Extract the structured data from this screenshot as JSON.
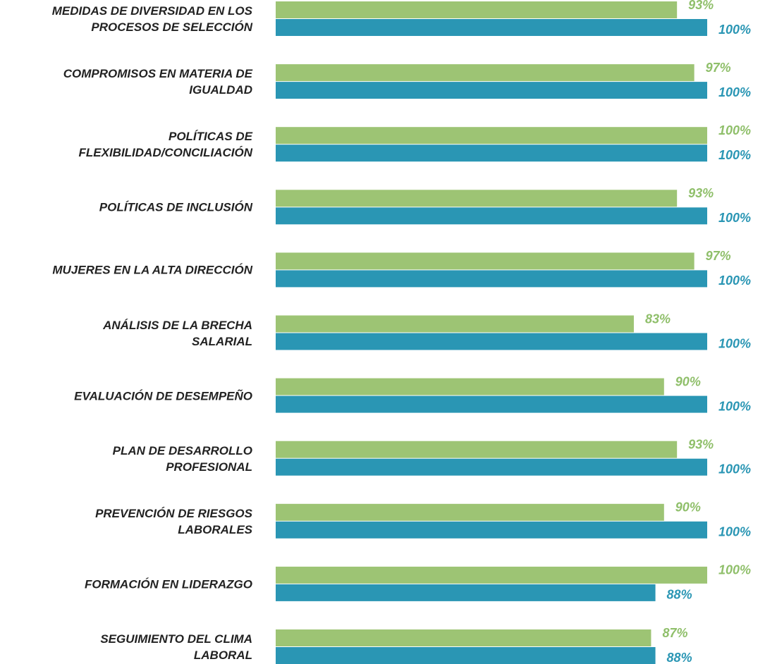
{
  "chart_data": {
    "type": "hbar",
    "categories": [
      "MEDIDAS DE DIVERSIDAD EN LOS\nPROCESOS DE SELECCIÓN",
      "COMPROMISOS EN MATERIA DE\nIGUALDAD",
      "POLÍTICAS DE\nFLEXIBILIDAD/CONCILIACIÓN",
      "POLÍTICAS DE INCLUSIÓN",
      "MUJERES EN LA ALTA DIRECCIÓN",
      "ANÁLISIS DE LA BRECHA\nSALARIAL",
      "EVALUACIÓN DE DESEMPEÑO",
      "PLAN DE DESARROLLO\nPROFESIONAL",
      "PREVENCIÓN DE RIESGOS\nLABORALES",
      "FORMACIÓN EN LIDERAZGO",
      "SEGUIMIENTO DEL CLIMA\nLABORAL"
    ],
    "series": [
      {
        "color": "#9dc474",
        "label_color": "#8fbf6a",
        "values": [
          93,
          97,
          100,
          93,
          97,
          83,
          90,
          93,
          90,
          100,
          87
        ],
        "value_labels": [
          "93%",
          "97%",
          "100%",
          "93%",
          "97%",
          "83%",
          "90%",
          "93%",
          "90%",
          "100%",
          "87%"
        ]
      },
      {
        "color": "#2a96b4",
        "label_color": "#2a96b4",
        "values": [
          100,
          100,
          100,
          100,
          100,
          100,
          100,
          100,
          100,
          88,
          88
        ],
        "value_labels": [
          "100%",
          "100%",
          "100%",
          "100%",
          "100%",
          "100%",
          "100%",
          "100%",
          "100%",
          "88%",
          "88%"
        ]
      }
    ],
    "xlim": [
      0,
      100
    ]
  }
}
